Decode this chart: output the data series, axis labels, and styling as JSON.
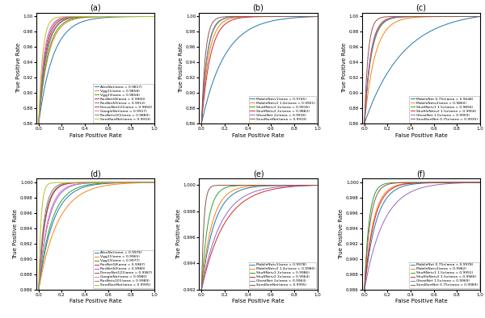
{
  "subplots": {
    "a": {
      "title": "(a)",
      "models": [
        {
          "name": "AlexNet(area = 0.9817)",
          "color": "#1f77b4",
          "auc": 0.9817,
          "steepness": 8
        },
        {
          "name": "Vgg11(area = 0.9858)",
          "color": "#ff7f0e",
          "auc": 0.9858,
          "steepness": 12
        },
        {
          "name": "Vgg13(area = 0.9858)",
          "color": "#2ca02c",
          "auc": 0.9858,
          "steepness": 13
        },
        {
          "name": "ResNet18(area = 0.9900)",
          "color": "#d62728",
          "auc": 0.99,
          "steepness": 18
        },
        {
          "name": "ResNet50(area = 0.9912)",
          "color": "#9467bd",
          "auc": 0.9912,
          "steepness": 20
        },
        {
          "name": "DenseNet121(area = 0.9892)",
          "color": "#8c564b",
          "auc": 0.9892,
          "steepness": 16
        },
        {
          "name": "GoogleNet(area = 0.9917)",
          "color": "#e377c2",
          "auc": 0.9917,
          "steepness": 22
        },
        {
          "name": "ResNetx101(area = 0.9889)",
          "color": "#7f7f7f",
          "auc": 0.9889,
          "steepness": 15
        },
        {
          "name": "SeedSortNet(area = 0.9933)",
          "color": "#bcbd22",
          "auc": 0.9933,
          "steepness": 30
        }
      ],
      "ylim": [
        0.86,
        1.005
      ],
      "xlim": [
        -0.02,
        1.0
      ],
      "yticks": [
        0.86,
        0.88,
        0.9,
        0.92,
        0.94,
        0.96,
        0.98,
        1.0
      ],
      "xticks": [
        0.0,
        0.2,
        0.4,
        0.6,
        0.8,
        1.0
      ]
    },
    "b": {
      "title": "(b)",
      "models": [
        {
          "name": "MobileNetv1(area = 0.9745)",
          "color": "#1f77b4",
          "auc": 0.9745,
          "steepness": 5
        },
        {
          "name": "MobileNetv2 1.4x(area = 0.9901)",
          "color": "#ff7f0e",
          "auc": 0.9901,
          "steepness": 16
        },
        {
          "name": "ShuffNetv1 2x(area = 0.9916)",
          "color": "#2ca02c",
          "auc": 0.9916,
          "steepness": 20
        },
        {
          "name": "ShuffNetv2 2x(area = 0.9882)",
          "color": "#d62728",
          "auc": 0.9882,
          "steepness": 13
        },
        {
          "name": "GhostNet 2x(area = 0.9916)",
          "color": "#9467bd",
          "auc": 0.9916,
          "steepness": 21
        },
        {
          "name": "SeedSortNet(area = 0.9933)",
          "color": "#8c564b",
          "auc": 0.9933,
          "steepness": 30
        }
      ],
      "ylim": [
        0.86,
        1.005
      ],
      "xlim": [
        -0.02,
        1.0
      ],
      "yticks": [
        0.86,
        0.88,
        0.9,
        0.92,
        0.94,
        0.96,
        0.98,
        1.0
      ],
      "xticks": [
        0.0,
        0.2,
        0.4,
        0.6,
        0.8,
        1.0
      ]
    },
    "c": {
      "title": "(c)",
      "models": [
        {
          "name": "MobileNet 0.75x(area = 0.9648)",
          "color": "#1f77b4",
          "auc": 0.9648,
          "steepness": 3
        },
        {
          "name": "MobileNetv2(area = 0.9860)",
          "color": "#ff7f0e",
          "auc": 0.986,
          "steepness": 11
        },
        {
          "name": "ShuffNetv1 1.5x(area = 0.9894)",
          "color": "#2ca02c",
          "auc": 0.9894,
          "steepness": 17
        },
        {
          "name": "ShuffleNetv2 1.5x(area = 0.9904)",
          "color": "#d62728",
          "auc": 0.9904,
          "steepness": 19
        },
        {
          "name": "GhostNet 1.5x(area = 0.9903)",
          "color": "#9467bd",
          "auc": 0.9903,
          "steepness": 18
        },
        {
          "name": "SeedSortNet 0.75x(area = 0.9935)",
          "color": "#8c564b",
          "auc": 0.9935,
          "steepness": 32
        }
      ],
      "ylim": [
        0.86,
        1.005
      ],
      "xlim": [
        -0.02,
        1.0
      ],
      "yticks": [
        0.86,
        0.88,
        0.9,
        0.92,
        0.94,
        0.96,
        0.98,
        1.0
      ],
      "xticks": [
        0.0,
        0.2,
        0.4,
        0.6,
        0.8,
        1.0
      ]
    },
    "d": {
      "title": "(d)",
      "models": [
        {
          "name": "AlexNet(area = 0.9976)",
          "color": "#1f77b4",
          "auc": 0.9976,
          "steepness": 8
        },
        {
          "name": "Vgg11(area = 0.9965)",
          "color": "#ff7f0e",
          "auc": 0.9965,
          "steepness": 6
        },
        {
          "name": "Vgg13(area = 0.9977)",
          "color": "#2ca02c",
          "auc": 0.9977,
          "steepness": 9
        },
        {
          "name": "ResNet18(area = 0.9987)",
          "color": "#d62728",
          "auc": 0.9987,
          "steepness": 18
        },
        {
          "name": "ResNet50(area = 0.9980)",
          "color": "#9467bd",
          "auc": 0.998,
          "steepness": 12
        },
        {
          "name": "DenseNet121(area = 0.9987)",
          "color": "#8c564b",
          "auc": 0.9987,
          "steepness": 19
        },
        {
          "name": "GoogleNet(area = 0.9980)",
          "color": "#e377c2",
          "auc": 0.998,
          "steepness": 13
        },
        {
          "name": "ResNetx101(area = 0.9989)",
          "color": "#7f7f7f",
          "auc": 0.9989,
          "steepness": 22
        },
        {
          "name": "SeedSortNet(area = 0.9995)",
          "color": "#bcbd22",
          "auc": 0.9995,
          "steepness": 50
        }
      ],
      "ylim": [
        0.986,
        1.0005
      ],
      "xlim": [
        -0.02,
        1.0
      ],
      "yticks": [
        0.986,
        0.988,
        0.99,
        0.992,
        0.994,
        0.996,
        0.998,
        1.0
      ],
      "xticks": [
        0.0,
        0.2,
        0.4,
        0.6,
        0.8,
        1.0
      ]
    },
    "e": {
      "title": "(e)",
      "models": [
        {
          "name": "MobileNetv1(area = 0.9978)",
          "color": "#1f77b4",
          "auc": 0.9978,
          "steepness": 9
        },
        {
          "name": "MobileNetv2 1.4x(area = 0.9980)",
          "color": "#ff7f0e",
          "auc": 0.998,
          "steepness": 11
        },
        {
          "name": "ShuffNetv1 2x(area = 0.9986)",
          "color": "#2ca02c",
          "auc": 0.9986,
          "steepness": 18
        },
        {
          "name": "ShuffNetv2 2x(area = 0.9964)",
          "color": "#d62728",
          "auc": 0.9964,
          "steepness": 5
        },
        {
          "name": "GhostNet 2x(area = 0.9964)",
          "color": "#9467bd",
          "auc": 0.9964,
          "steepness": 6
        },
        {
          "name": "SeedSortNet(area = 0.9995)",
          "color": "#8c564b",
          "auc": 0.9995,
          "steepness": 50
        }
      ],
      "ylim": [
        0.992,
        1.0005
      ],
      "xlim": [
        -0.02,
        1.0
      ],
      "yticks": [
        0.992,
        0.994,
        0.996,
        0.998,
        1.0
      ],
      "xticks": [
        0.0,
        0.2,
        0.4,
        0.6,
        0.8,
        1.0
      ]
    },
    "f": {
      "title": "(f)",
      "models": [
        {
          "name": "MobileNet 0.75x(area = 0.9978)",
          "color": "#1f77b4",
          "auc": 0.9978,
          "steepness": 10
        },
        {
          "name": "MobileNetv2(area = 0.9982)",
          "color": "#ff7f0e",
          "auc": 0.9982,
          "steepness": 13
        },
        {
          "name": "ShuffNetv1 1.5x(area = 0.9991)",
          "color": "#2ca02c",
          "auc": 0.9991,
          "steepness": 25
        },
        {
          "name": "ShuffleNetv2 1.5x(area = 0.9980)",
          "color": "#d62728",
          "auc": 0.998,
          "steepness": 12
        },
        {
          "name": "GhostNet 1.5x(area = 0.9969)",
          "color": "#9467bd",
          "auc": 0.9969,
          "steepness": 6
        },
        {
          "name": "SeedSortNet 0.75x(area = 0.9989)",
          "color": "#8c564b",
          "auc": 0.9989,
          "steepness": 20
        }
      ],
      "ylim": [
        0.986,
        1.0005
      ],
      "xlim": [
        -0.02,
        1.0
      ],
      "yticks": [
        0.986,
        0.988,
        0.99,
        0.992,
        0.994,
        0.996,
        0.998,
        1.0
      ],
      "xticks": [
        0.0,
        0.2,
        0.4,
        0.6,
        0.8,
        1.0
      ]
    }
  }
}
